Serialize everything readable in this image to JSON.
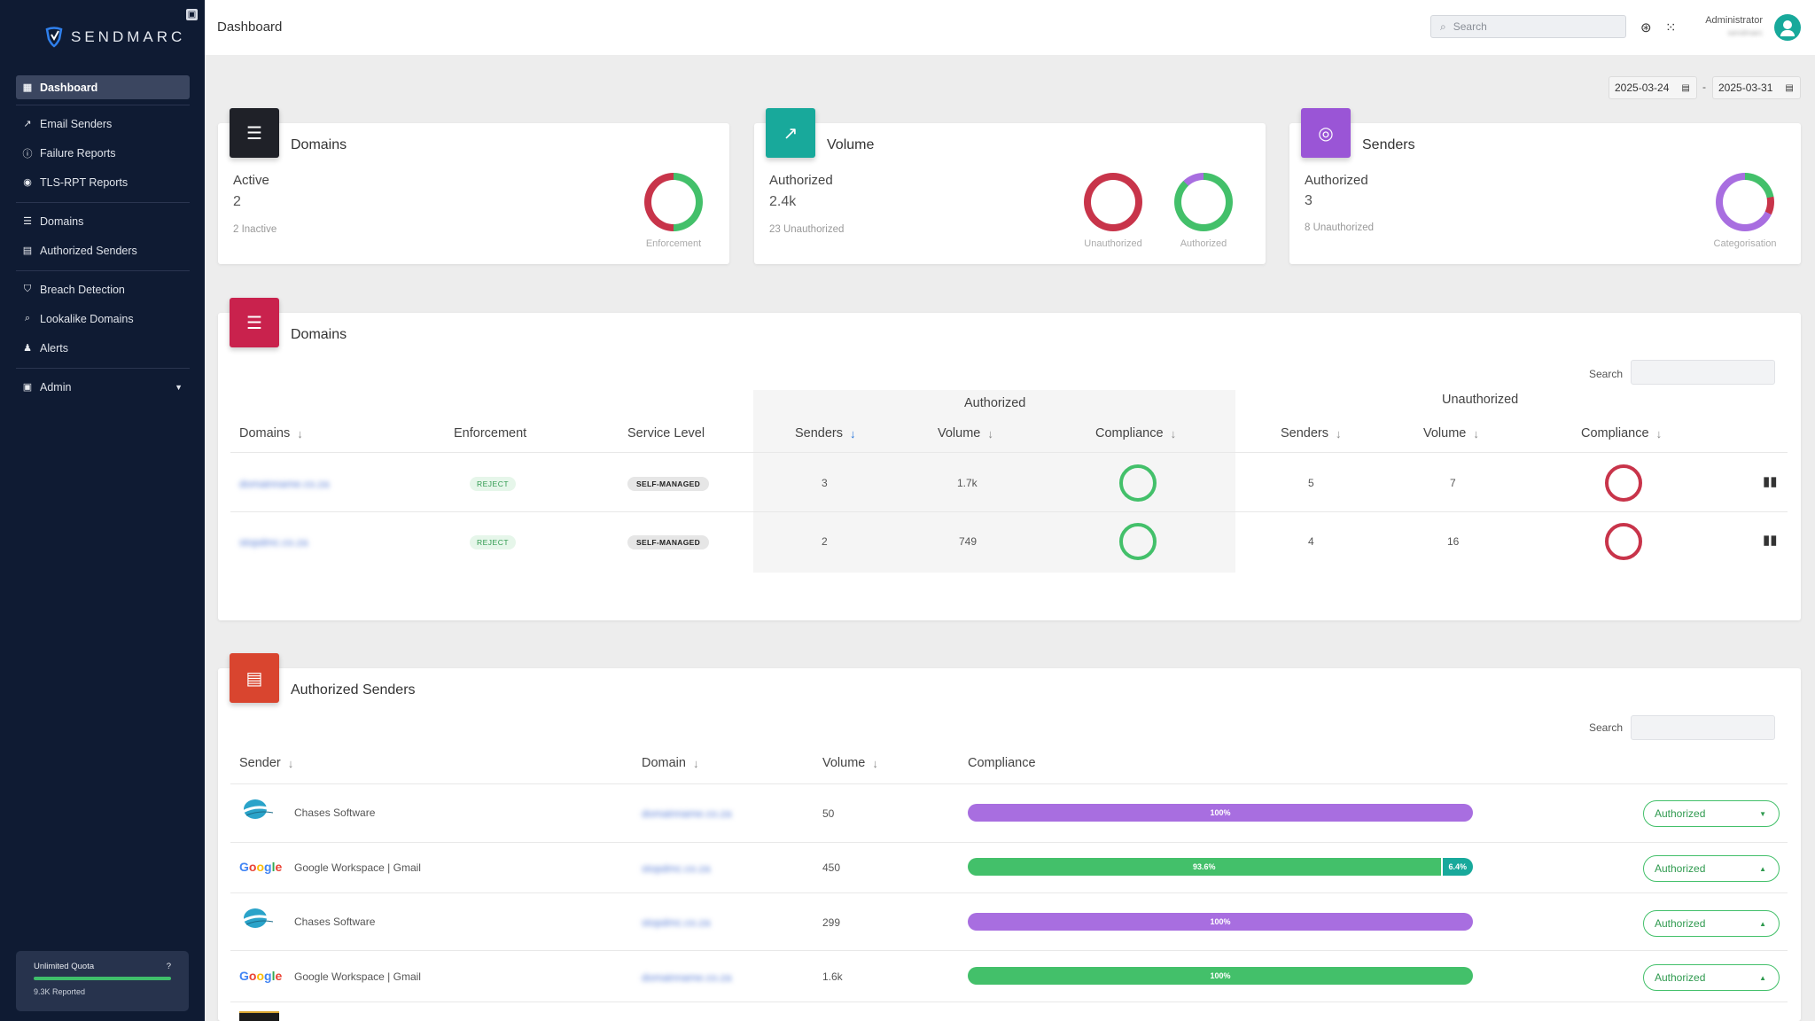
{
  "app": {
    "brand": "SENDMARC",
    "page_title": "Dashboard"
  },
  "sidebar": {
    "items": [
      {
        "label": "Dashboard",
        "icon": "dashboard-icon"
      },
      {
        "label": "Email Senders",
        "icon": "trend-icon"
      },
      {
        "label": "Failure Reports",
        "icon": "info-icon"
      },
      {
        "label": "TLS-RPT Reports",
        "icon": "eye-icon"
      },
      {
        "label": "Domains",
        "icon": "server-icon"
      },
      {
        "label": "Authorized Senders",
        "icon": "id-card-icon"
      },
      {
        "label": "Breach Detection",
        "icon": "shield-icon"
      },
      {
        "label": "Lookalike Domains",
        "icon": "search-icon"
      },
      {
        "label": "Alerts",
        "icon": "bell-icon"
      },
      {
        "label": "Admin",
        "icon": "admin-icon"
      }
    ],
    "quota": {
      "title": "Unlimited Quota",
      "reported": "9.3K Reported"
    }
  },
  "topbar": {
    "search_placeholder": "Search",
    "user_name": "Administrator",
    "user_sub": "sendmarc"
  },
  "date_range": {
    "start": "2025-03-24",
    "separator": "-",
    "end": "2025-03-31"
  },
  "summary": {
    "domains": {
      "title": "Domains",
      "label": "Active",
      "value": "2",
      "sub": "2 Inactive",
      "donut_label": "Enforcement"
    },
    "volume": {
      "title": "Volume",
      "label": "Authorized",
      "value": "2.4k",
      "sub": "23 Unauthorized",
      "donut1_label": "Unauthorized",
      "donut2_label": "Authorized"
    },
    "senders": {
      "title": "Senders",
      "label": "Authorized",
      "value": "3",
      "sub": "8 Unauthorized",
      "donut_label": "Categorisation"
    }
  },
  "domains_table": {
    "title": "Domains",
    "search_label": "Search",
    "group_authorized": "Authorized",
    "group_unauthorized": "Unauthorized",
    "headers": {
      "domains": "Domains",
      "enforcement": "Enforcement",
      "service_level": "Service Level",
      "senders": "Senders",
      "volume": "Volume",
      "compliance": "Compliance",
      "u_senders": "Senders",
      "u_volume": "Volume",
      "u_compliance": "Compliance"
    },
    "rows": [
      {
        "domain": "domainname.co.za",
        "enforcement": "REJECT",
        "service_level": "SELF-MANAGED",
        "senders": "3",
        "volume": "1.7k",
        "u_senders": "5",
        "u_volume": "7"
      },
      {
        "domain": "stopdmc.co.za",
        "enforcement": "REJECT",
        "service_level": "SELF-MANAGED",
        "senders": "2",
        "volume": "749",
        "u_senders": "4",
        "u_volume": "16"
      }
    ]
  },
  "senders_table": {
    "title": "Authorized Senders",
    "search_label": "Search",
    "headers": {
      "sender": "Sender",
      "domain": "Domain",
      "volume": "Volume",
      "compliance": "Compliance"
    },
    "rows": [
      {
        "sender": "Chases Software",
        "domain": "domainname.co.za",
        "volume": "50",
        "pass_label": "100%",
        "pass": 1.0,
        "fail_label": "",
        "status": "Authorized"
      },
      {
        "sender": "Google Workspace | Gmail",
        "domain": "stopdmc.co.za",
        "volume": "450",
        "pass_label": "93.6%",
        "pass": 0.936,
        "fail_label": "6.4%",
        "status": "Authorized"
      },
      {
        "sender": "Chases Software",
        "domain": "stopdmc.co.za",
        "volume": "299",
        "pass_label": "100%",
        "pass": 1.0,
        "fail_label": "",
        "status": "Authorized"
      },
      {
        "sender": "Google Workspace | Gmail",
        "domain": "domainname.co.za",
        "volume": "1.6k",
        "pass_label": "100%",
        "pass": 1.0,
        "fail_label": "",
        "status": "Authorized"
      }
    ]
  },
  "colors": {
    "sidebar_bg": "#0f1b33",
    "green": "#43c06a",
    "red": "#c8344a",
    "purple": "#a86ee0",
    "teal": "#18a99b"
  }
}
